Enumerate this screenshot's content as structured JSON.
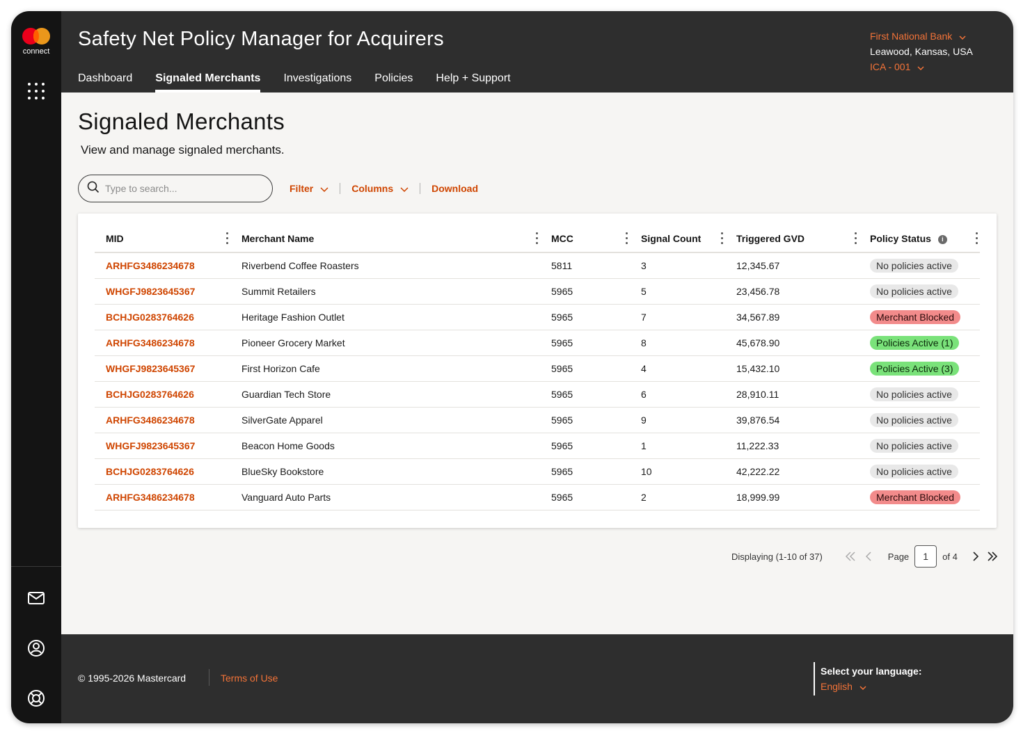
{
  "brand": {
    "logo_text": "connect"
  },
  "header": {
    "title": "Safety Net Policy Manager for Acquirers",
    "nav": [
      {
        "label": "Dashboard",
        "active": false
      },
      {
        "label": "Signaled Merchants",
        "active": true
      },
      {
        "label": "Investigations",
        "active": false
      },
      {
        "label": "Policies",
        "active": false
      },
      {
        "label": "Help + Support",
        "active": false
      }
    ],
    "account": {
      "bank": "First National Bank",
      "location": "Leawood, Kansas, USA",
      "ica": "ICA - 001"
    }
  },
  "page": {
    "title": "Signaled Merchants",
    "subtitle": "View and manage signaled merchants."
  },
  "toolbar": {
    "search_placeholder": "Type to search...",
    "filter_label": "Filter",
    "columns_label": "Columns",
    "download_label": "Download"
  },
  "table": {
    "columns": [
      "MID",
      "Merchant Name",
      "MCC",
      "Signal Count",
      "Triggered GVD",
      "Policy Status"
    ],
    "rows": [
      {
        "mid": "ARHFG3486234678",
        "name": "Riverbend Coffee Roasters",
        "mcc": "5811",
        "signals": "3",
        "gvd": "12,345.67",
        "status": "No policies active",
        "status_type": "none"
      },
      {
        "mid": "WHGFJ9823645367",
        "name": "Summit Retailers",
        "mcc": "5965",
        "signals": "5",
        "gvd": "23,456.78",
        "status": "No policies active",
        "status_type": "none"
      },
      {
        "mid": "BCHJG0283764626",
        "name": "Heritage Fashion Outlet",
        "mcc": "5965",
        "signals": "7",
        "gvd": "34,567.89",
        "status": "Merchant Blocked",
        "status_type": "blocked"
      },
      {
        "mid": "ARHFG3486234678",
        "name": "Pioneer Grocery Market",
        "mcc": "5965",
        "signals": "8",
        "gvd": "45,678.90",
        "status": "Policies Active (1)",
        "status_type": "active"
      },
      {
        "mid": "WHGFJ9823645367",
        "name": "First Horizon Cafe",
        "mcc": "5965",
        "signals": "4",
        "gvd": "15,432.10",
        "status": "Policies Active (3)",
        "status_type": "active"
      },
      {
        "mid": "BCHJG0283764626",
        "name": "Guardian Tech Store",
        "mcc": "5965",
        "signals": "6",
        "gvd": "28,910.11",
        "status": "No policies active",
        "status_type": "none"
      },
      {
        "mid": "ARHFG3486234678",
        "name": "SilverGate Apparel",
        "mcc": "5965",
        "signals": "9",
        "gvd": "39,876.54",
        "status": "No policies active",
        "status_type": "none"
      },
      {
        "mid": "WHGFJ9823645367",
        "name": "Beacon Home Goods",
        "mcc": "5965",
        "signals": "1",
        "gvd": "11,222.33",
        "status": "No policies active",
        "status_type": "none"
      },
      {
        "mid": "BCHJG0283764626",
        "name": "BlueSky Bookstore",
        "mcc": "5965",
        "signals": "10",
        "gvd": "42,222.22",
        "status": "No policies active",
        "status_type": "none"
      },
      {
        "mid": "ARHFG3486234678",
        "name": "Vanguard Auto Parts",
        "mcc": "5965",
        "signals": "2",
        "gvd": "18,999.99",
        "status": "Merchant Blocked",
        "status_type": "blocked"
      }
    ]
  },
  "pagination": {
    "displaying": "Displaying (1-10 of 37)",
    "page_label": "Page",
    "current_page": "1",
    "of_label": "of 4"
  },
  "footer": {
    "copyright": "© 1995-2026 Mastercard",
    "terms": "Terms of Use",
    "language_label": "Select your language:",
    "language_value": "English"
  },
  "colors": {
    "accent": "#cf4500",
    "accent_light": "#f37338",
    "dark": "#2e2e2e",
    "rail": "#141414",
    "badge_blocked": "#f28b8b",
    "badge_active": "#7ae27a",
    "badge_none": "#e8e8e8"
  },
  "icons": [
    "mastercard-logo",
    "apps-grid-icon",
    "mail-icon",
    "user-icon",
    "lifebuoy-icon",
    "search-icon",
    "chevron-down-icon",
    "info-icon",
    "kebab-icon",
    "first-page-icon",
    "prev-page-icon",
    "next-page-icon",
    "last-page-icon"
  ]
}
